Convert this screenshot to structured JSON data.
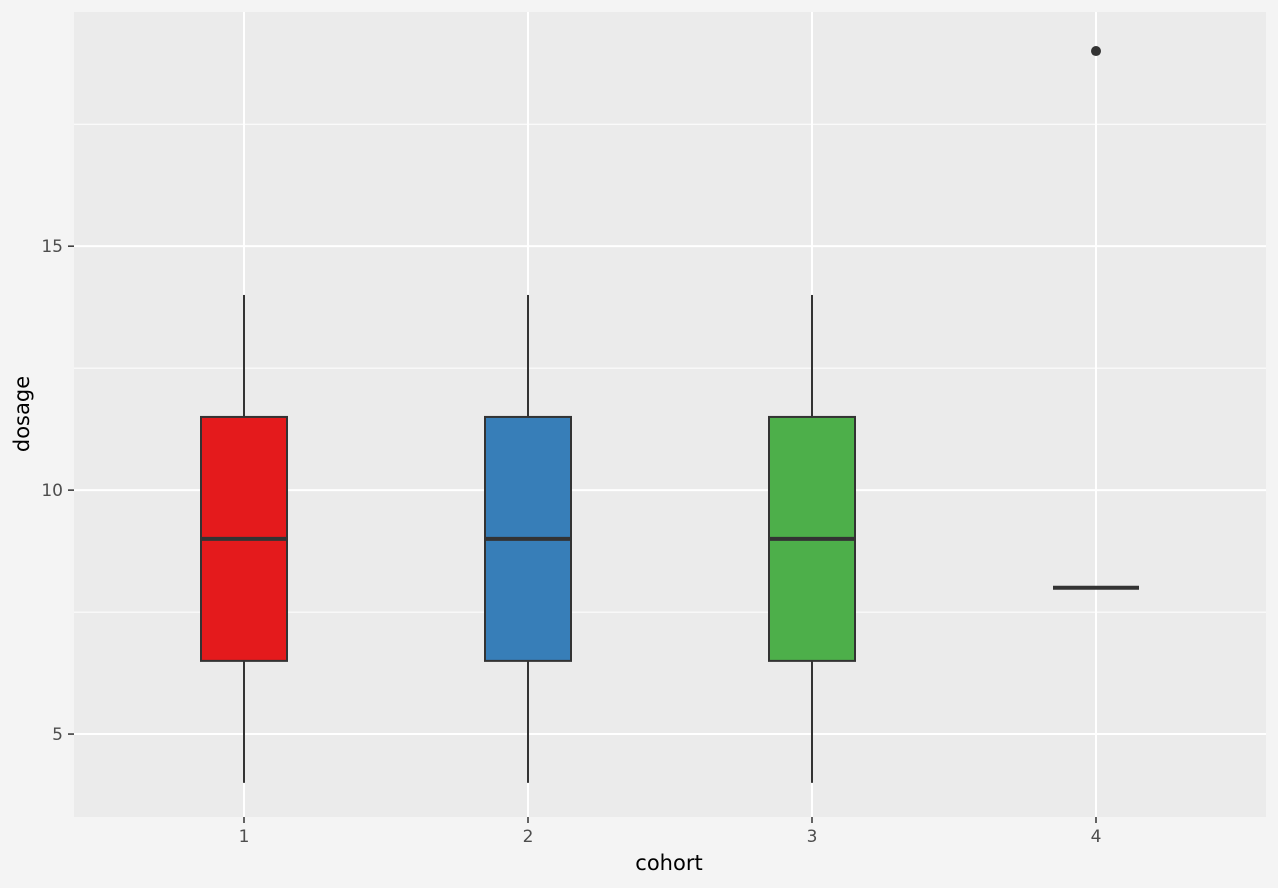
{
  "chart_data": {
    "type": "box",
    "title": "",
    "xlabel": "cohort",
    "ylabel": "dosage",
    "categories": [
      "1",
      "2",
      "3",
      "4"
    ],
    "ylim": [
      3.3,
      19.8
    ],
    "yticks": [
      5,
      10,
      15
    ],
    "ytick_labels": [
      "5",
      "10",
      "15"
    ],
    "grid": true,
    "legend": "none",
    "boxes": [
      {
        "category": "1",
        "min": 4,
        "q1": 6.5,
        "median": 9,
        "q3": 11.5,
        "max": 14,
        "outliers": [],
        "fill": "#e41a1c"
      },
      {
        "category": "2",
        "min": 4,
        "q1": 6.5,
        "median": 9,
        "q3": 11.5,
        "max": 14,
        "outliers": [],
        "fill": "#377eb8"
      },
      {
        "category": "3",
        "min": 4,
        "q1": 6.5,
        "median": 9,
        "q3": 11.5,
        "max": 14,
        "outliers": [],
        "fill": "#4daf4a"
      },
      {
        "category": "4",
        "min": 8,
        "q1": 8,
        "median": 8,
        "q3": 8,
        "max": 8,
        "outliers": [
          19
        ],
        "fill": "#984ea3"
      }
    ],
    "colors": {
      "panel": "#ebebeb",
      "grid": "#ffffff",
      "outline": "#333333",
      "background": "#f4f4f4"
    }
  }
}
